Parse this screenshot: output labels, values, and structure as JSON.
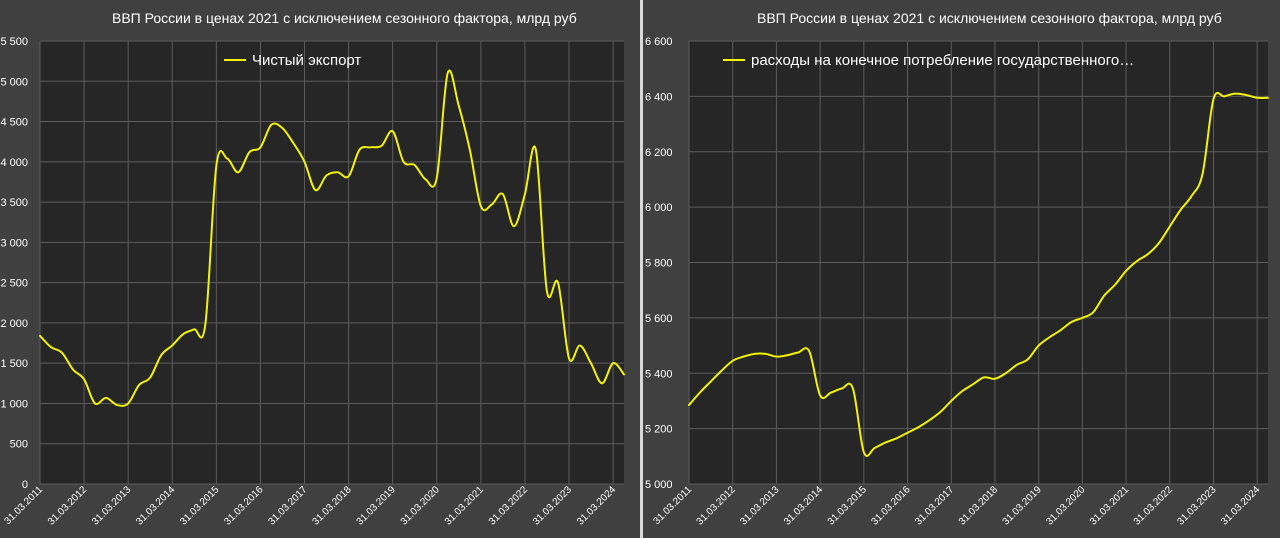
{
  "chart_data": [
    {
      "type": "line",
      "title": "ВВП России в ценах 2021 с исключением сезонного фактора, млрд руб",
      "xlabel": "",
      "ylabel": "",
      "ylim": [
        0,
        5500
      ],
      "yticks": [
        0,
        500,
        1000,
        1500,
        2000,
        2500,
        3000,
        3500,
        4000,
        4500,
        5000,
        5500
      ],
      "ytick_labels": [
        "0",
        "500",
        "1 000",
        "1 500",
        "2 000",
        "2 500",
        "3 000",
        "3 500",
        "4 000",
        "4 500",
        "5 000",
        "5 500"
      ],
      "xticks": [
        "31.03.2011",
        "31.03.2012",
        "31.03.2013",
        "31.03.2014",
        "31.03.2015",
        "31.03.2016",
        "31.03.2017",
        "31.03.2018",
        "31.03.2019",
        "31.03.2020",
        "31.03.2021",
        "31.03.2022",
        "31.03.2023",
        "31.03.2024"
      ],
      "legend": "top",
      "grid": true,
      "series": [
        {
          "name": "Чистый экспорт",
          "x": [
            "31.03.2011",
            "30.06.2011",
            "30.09.2011",
            "31.12.2011",
            "31.03.2012",
            "30.06.2012",
            "30.09.2012",
            "31.12.2012",
            "31.03.2013",
            "30.06.2013",
            "30.09.2013",
            "31.12.2013",
            "31.03.2014",
            "30.06.2014",
            "30.09.2014",
            "31.12.2014",
            "31.03.2015",
            "30.06.2015",
            "30.09.2015",
            "31.12.2015",
            "31.03.2016",
            "30.06.2016",
            "30.09.2016",
            "31.12.2016",
            "31.03.2017",
            "30.06.2017",
            "30.09.2017",
            "31.12.2017",
            "31.03.2018",
            "30.06.2018",
            "30.09.2018",
            "31.12.2018",
            "31.03.2019",
            "30.06.2019",
            "30.09.2019",
            "31.12.2019",
            "31.03.2020",
            "30.06.2020",
            "30.09.2020",
            "31.12.2020",
            "31.03.2021",
            "30.06.2021",
            "30.09.2021",
            "31.12.2021",
            "31.03.2022",
            "30.06.2022",
            "30.09.2022",
            "31.12.2022",
            "31.03.2023",
            "30.06.2023",
            "30.09.2023",
            "31.12.2023",
            "31.03.2024",
            "30.06.2024"
          ],
          "values": [
            1840,
            1700,
            1630,
            1420,
            1300,
            1000,
            1070,
            980,
            1000,
            1230,
            1320,
            1600,
            1720,
            1860,
            1920,
            1980,
            3950,
            4040,
            3870,
            4120,
            4180,
            4460,
            4420,
            4230,
            4000,
            3650,
            3830,
            3870,
            3820,
            4150,
            4180,
            4200,
            4380,
            4000,
            3960,
            3780,
            3800,
            5100,
            4700,
            4150,
            3450,
            3470,
            3600,
            3200,
            3600,
            4150,
            2400,
            2500,
            1560,
            1720,
            1500,
            1250,
            1500,
            1360
          ]
        }
      ]
    },
    {
      "type": "line",
      "title": "ВВП России в ценах 2021 с исключением сезонного фактора, млрд руб",
      "xlabel": "",
      "ylabel": "",
      "ylim": [
        5000,
        6600
      ],
      "yticks": [
        5000,
        5200,
        5400,
        5600,
        5800,
        6000,
        6200,
        6400,
        6600
      ],
      "ytick_labels": [
        "5 000",
        "5 200",
        "5 400",
        "5 600",
        "5 800",
        "6 000",
        "6 200",
        "6 400",
        "6 600"
      ],
      "xticks": [
        "31.03.2011",
        "31.03.2012",
        "31.03.2013",
        "31.03.2014",
        "31.03.2015",
        "31.03.2016",
        "31.03.2017",
        "31.03.2018",
        "31.03.2019",
        "31.03.2020",
        "31.03.2021",
        "31.03.2022",
        "31.03.2023",
        "31.03.2024"
      ],
      "legend": "top",
      "grid": true,
      "series": [
        {
          "name": "расходы на конечное потребление государственного…",
          "x": [
            "31.03.2011",
            "30.06.2011",
            "30.09.2011",
            "31.12.2011",
            "31.03.2012",
            "30.06.2012",
            "30.09.2012",
            "31.12.2012",
            "31.03.2013",
            "30.06.2013",
            "30.09.2013",
            "31.12.2013",
            "31.03.2014",
            "30.06.2014",
            "30.09.2014",
            "31.12.2014",
            "31.03.2015",
            "30.06.2015",
            "30.09.2015",
            "31.12.2015",
            "31.03.2016",
            "30.06.2016",
            "30.09.2016",
            "31.12.2016",
            "31.03.2017",
            "30.06.2017",
            "30.09.2017",
            "31.12.2017",
            "31.03.2018",
            "30.06.2018",
            "30.09.2018",
            "31.12.2018",
            "31.03.2019",
            "30.06.2019",
            "30.09.2019",
            "31.12.2019",
            "31.03.2020",
            "30.06.2020",
            "30.09.2020",
            "31.12.2020",
            "31.03.2021",
            "30.06.2021",
            "30.09.2021",
            "31.12.2021",
            "31.03.2022",
            "30.06.2022",
            "30.09.2022",
            "31.12.2022",
            "31.03.2023",
            "30.06.2023",
            "30.09.2023",
            "31.12.2023",
            "31.03.2024",
            "30.06.2024"
          ],
          "values": [
            5285,
            5330,
            5370,
            5410,
            5445,
            5460,
            5470,
            5470,
            5460,
            5465,
            5475,
            5480,
            5320,
            5330,
            5345,
            5345,
            5115,
            5130,
            5150,
            5165,
            5185,
            5205,
            5230,
            5260,
            5300,
            5335,
            5360,
            5385,
            5380,
            5400,
            5430,
            5450,
            5500,
            5530,
            5555,
            5585,
            5600,
            5620,
            5680,
            5720,
            5770,
            5805,
            5830,
            5870,
            5930,
            5990,
            6040,
            6120,
            6390,
            6400,
            6410,
            6405,
            6395,
            6395
          ]
        }
      ]
    }
  ]
}
